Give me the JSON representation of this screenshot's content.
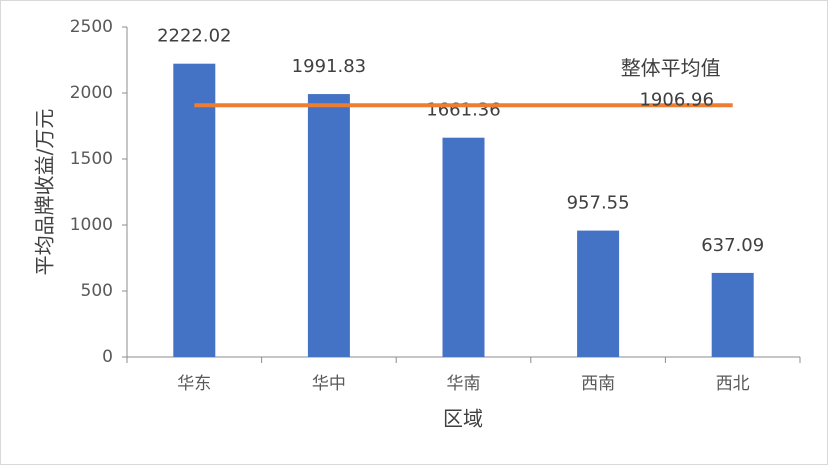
{
  "chart_data": {
    "type": "bar",
    "categories": [
      "华东",
      "华中",
      "华南",
      "西南",
      "西北"
    ],
    "values": [
      2222.02,
      1991.83,
      1661.36,
      957.55,
      637.09
    ],
    "color": "#4472c4",
    "x_label": "区域",
    "y_label": "平均品牌收益/万元",
    "ylim": [
      0,
      2500
    ],
    "yticks": [
      0,
      500,
      1000,
      1500,
      2000,
      2500
    ],
    "grid": false,
    "reference_line": {
      "name": "整体平均值",
      "value": 1906.96,
      "color": "#ed7d31"
    }
  }
}
